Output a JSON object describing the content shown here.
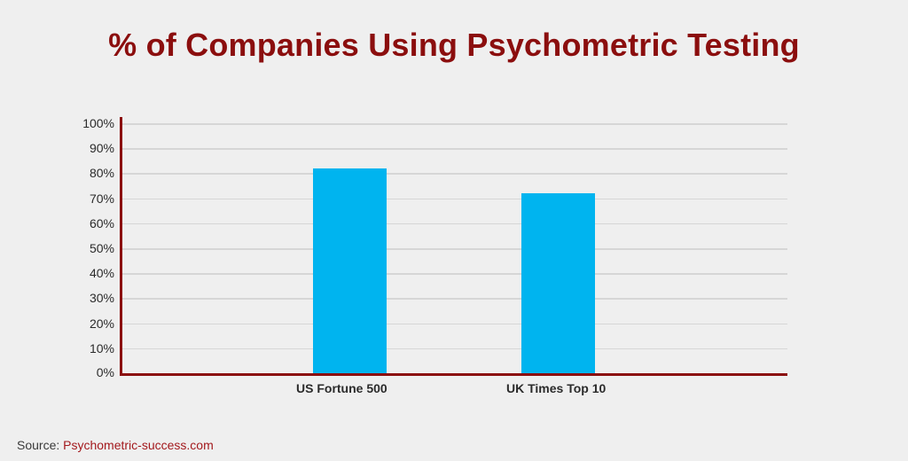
{
  "title": "% of Companies Using Psychometric Testing",
  "source": {
    "label": "Source:",
    "link_text": "Psychometric-success.com"
  },
  "colors": {
    "title": "#8b0e0e",
    "axis": "#8b0e0e",
    "bar": "#00b4ef",
    "grid": "#d6d6d6",
    "background": "#efefef",
    "source_link": "#a3191d"
  },
  "y_ticks": [
    "100%",
    "90%",
    "80%",
    "70%",
    "60%",
    "50%",
    "40%",
    "30%",
    "20%",
    "10%",
    "0%"
  ],
  "x_labels": [
    "US Fortune 500",
    "UK Times Top 10"
  ],
  "chart_data": {
    "type": "bar",
    "title": "% of Companies Using Psychometric Testing",
    "categories": [
      "US Fortune 500",
      "UK Times Top 10"
    ],
    "values": [
      82,
      72
    ],
    "xlabel": "",
    "ylabel": "",
    "ylim": [
      0,
      100
    ],
    "y_tick_labels": [
      "0%",
      "10%",
      "20%",
      "30%",
      "40%",
      "50%",
      "60%",
      "70%",
      "80%",
      "90%",
      "100%"
    ],
    "grid": true,
    "legend": null,
    "annotations": [
      "Source: Psychometric-success.com"
    ]
  }
}
